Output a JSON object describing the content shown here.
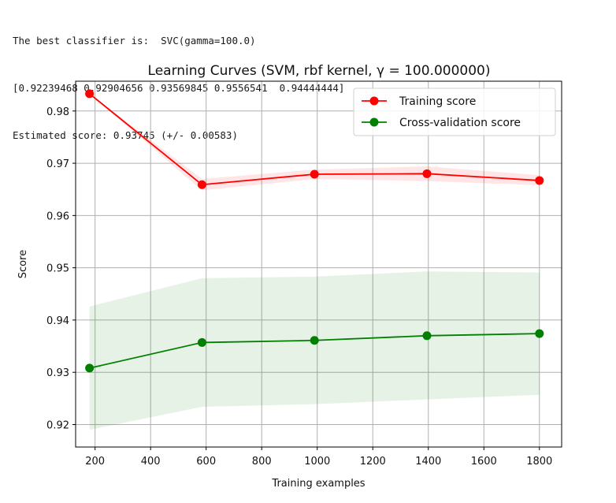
{
  "console": {
    "lines": [
      "The best classifier is:  SVC(gamma=100.0)",
      "[0.92239468 0.92904656 0.93569845 0.9556541  0.94444444]",
      "Estimated score: 0.93745 (+/- 0.00583)"
    ]
  },
  "chart_data": {
    "type": "line",
    "title": "Learning Curves (SVM, rbf kernel, γ = 100.000000)",
    "xlabel": "Training examples",
    "ylabel": "Score",
    "x": [
      180,
      585,
      990,
      1395,
      1800
    ],
    "xlim": [
      130,
      1880
    ],
    "ylim": [
      0.9157,
      0.9857
    ],
    "xticks": [
      200,
      400,
      600,
      800,
      1000,
      1200,
      1400,
      1600,
      1800
    ],
    "yticks": [
      0.92,
      0.93,
      0.94,
      0.95,
      0.96,
      0.97,
      0.98
    ],
    "grid": true,
    "legend_position": "top-right",
    "series": [
      {
        "name": "Training score",
        "color": "#ff0000",
        "values": [
          0.9833,
          0.9659,
          0.9679,
          0.968,
          0.9667
        ],
        "band_lower": [
          0.9833,
          0.9648,
          0.967,
          0.9666,
          0.9658
        ],
        "band_upper": [
          0.9833,
          0.967,
          0.9688,
          0.9694,
          0.9677
        ]
      },
      {
        "name": "Cross-validation score",
        "color": "#008000",
        "values": [
          0.9308,
          0.9357,
          0.9361,
          0.937,
          0.9374
        ],
        "band_lower": [
          0.919,
          0.9234,
          0.9239,
          0.9248,
          0.9257
        ],
        "band_upper": [
          0.9426,
          0.948,
          0.9483,
          0.9493,
          0.9491
        ]
      }
    ]
  }
}
